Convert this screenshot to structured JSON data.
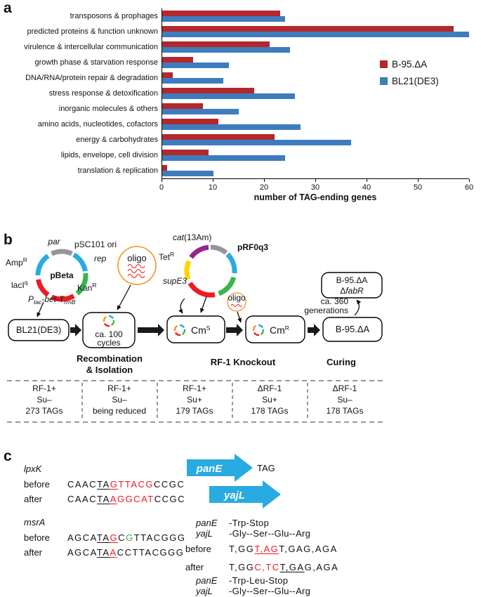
{
  "panels": {
    "a": "a",
    "b": "b",
    "c": "c"
  },
  "chart_data": {
    "type": "bar",
    "orientation": "horizontal",
    "categories": [
      "transposons & prophages",
      "predicted proteins & function unknown",
      "virulence & intercellular communication",
      "growth phase & starvation response",
      "DNA/RNA/protein repair & degradation",
      "stress response & detoxification",
      "inorganic molecules & others",
      "amino acids, nucleotides, cofactors",
      "energy & carbohydrates",
      "lipids, envelope, cell division",
      "translation & replication"
    ],
    "series": [
      {
        "name": "B-95.ΔA",
        "color": "#B3282D",
        "values": [
          23,
          57,
          21,
          6,
          2,
          18,
          8,
          11,
          22,
          9,
          1
        ]
      },
      {
        "name": "BL21(DE3)",
        "color": "#3E7CBE",
        "values": [
          24,
          60,
          25,
          13,
          12,
          26,
          15,
          27,
          37,
          24,
          10
        ]
      }
    ],
    "xlabel": "number of TAG-ending genes",
    "xlim": [
      0,
      60
    ],
    "xticks": [
      0,
      10,
      20,
      30,
      40,
      50,
      60
    ],
    "grid": false,
    "legend_position": "right"
  },
  "panel_b": {
    "pbeta": {
      "name": "pBeta",
      "par": "par",
      "psc101": "pSC101 ori",
      "rep": "rep",
      "amp": "Amp",
      "amp_sup": "R",
      "laci": "lacI",
      "laci_sup": "q",
      "kan": "Kan",
      "kan_sup": "R",
      "ptac_p": "P",
      "ptac_sub": "tac",
      "ptac_mid": "-bet-T",
      "ptac_sub2": "rrnB"
    },
    "prf": {
      "name": "pRF0q3",
      "cat": "cat",
      "cat_note": "(13Am)",
      "tet": "Tet",
      "tet_sup": "R",
      "supe3": "supE3"
    },
    "oligo_big": "oligo",
    "oligo_small": "oligo",
    "start_strain": "BL21(DE3)",
    "cycles_1": "ca. 100",
    "cycles_2": "cycles",
    "stage1_1": "Recombination",
    "stage1_2": "& Isolation",
    "cm": "Cm",
    "cms_sup": "S",
    "cmr_sup": "R",
    "stage2": "RF-1 Knockout",
    "stage3": "Curing",
    "gen_1": "ca. 360",
    "gen_2": "generations",
    "final_strain": "B-95.ΔA",
    "evolved_1": "B-95.ΔA",
    "evolved_2a": "Δ",
    "evolved_2b": "fabR",
    "table": {
      "columns": [
        {
          "lines": [
            "RF-1+",
            "Su–",
            "273 TAGs"
          ]
        },
        {
          "lines": [
            "RF-1+",
            "Su–",
            "being reduced"
          ]
        },
        {
          "lines": [
            "RF-1+",
            "Su+",
            "179 TAGs"
          ]
        },
        {
          "lines": [
            "ΔRF-1",
            "Su+",
            "178 TAGs"
          ]
        },
        {
          "lines": [
            "ΔRF-1",
            "Su–",
            "178 TAGs"
          ]
        }
      ]
    }
  },
  "panel_c": {
    "genes_left": [
      {
        "name": "lpxK",
        "rows": [
          {
            "label": "before",
            "segments": [
              {
                "t": "CAAC"
              },
              {
                "t": "TA",
                "u": true
              },
              {
                "t": "G",
                "u": true,
                "c": "red"
              },
              {
                "t": "TTACG",
                "c": "red"
              },
              {
                "t": "CCGC"
              }
            ]
          },
          {
            "label": "after",
            "segments": [
              {
                "t": "CAAC"
              },
              {
                "t": "TA",
                "u": true
              },
              {
                "t": "A",
                "u": true,
                "c": "red"
              },
              {
                "t": "GGCAT",
                "c": "red"
              },
              {
                "t": "CCGC"
              }
            ]
          }
        ]
      },
      {
        "name": "msrA",
        "rows": [
          {
            "label": "before",
            "segments": [
              {
                "t": "AGCA"
              },
              {
                "t": "TA",
                "u": true
              },
              {
                "t": "G",
                "u": true,
                "c": "red"
              },
              {
                "t": "C"
              },
              {
                "t": "G",
                "c": "green"
              },
              {
                "t": "TTACGGG"
              }
            ]
          },
          {
            "label": "after",
            "segments": [
              {
                "t": "AGCA"
              },
              {
                "t": "TA",
                "u": true
              },
              {
                "t": "A",
                "u": true,
                "c": "red"
              },
              {
                "t": "CC"
              },
              {
                "t": "TTACGGG"
              }
            ]
          }
        ]
      }
    ],
    "diagram": {
      "top_gene": "panE",
      "stop": "TAG",
      "bottom_gene": "yajL"
    },
    "right_rows": [
      {
        "label": "panE",
        "italic": true,
        "segments": [
          {
            "t": "-Trp-Stop"
          }
        ]
      },
      {
        "label": "yajL",
        "italic": true,
        "segments": [
          {
            "t": "-Gly--Ser--Glu--Arg"
          }
        ]
      },
      {
        "label": "before",
        "spaced": true,
        "segments": [
          {
            "t": "T,GG"
          },
          {
            "t": "T,AG",
            "u": true,
            "c": "red"
          },
          {
            "t": "T,GAG,AGA"
          }
        ]
      },
      {
        "label": "after",
        "spaced": true,
        "segments": [
          {
            "t": "T,GG"
          },
          {
            "t": "C,TC",
            "c": "red"
          },
          {
            "t": "T,GA",
            "u": true
          },
          {
            "t": "G,AGA"
          }
        ]
      },
      {
        "label": "panE",
        "italic": true,
        "segments": [
          {
            "t": "-Trp-Leu-Stop"
          }
        ]
      },
      {
        "label": "yajL",
        "italic": true,
        "segments": [
          {
            "t": "-Gly--Ser--Glu--Arg"
          }
        ]
      }
    ]
  }
}
